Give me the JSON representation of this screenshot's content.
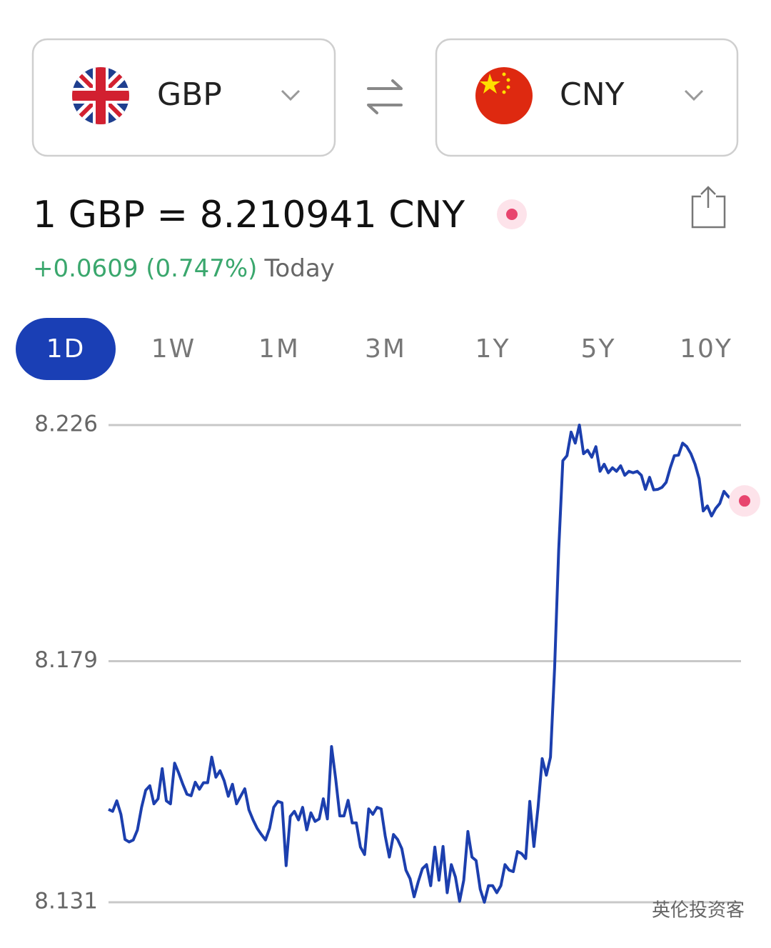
{
  "from_currency": "GBP",
  "to_currency": "CNY",
  "rate_text": "1 GBP = 8.210941 CNY",
  "change": "+0.0609 (0.747%)",
  "period_label": "Today",
  "ranges": [
    "1D",
    "1W",
    "1M",
    "3M",
    "1Y",
    "5Y",
    "10Y"
  ],
  "selected_range_index": 0,
  "watermark": "英伦投资客",
  "chart_data": {
    "type": "line",
    "ylim": [
      8.131,
      8.226
    ],
    "yticks": [
      8.131,
      8.179,
      8.226
    ],
    "grid": true,
    "series": [
      {
        "color": "#1c3fae",
        "values": [
          8.1495,
          8.1491,
          8.1512,
          8.1485,
          8.1435,
          8.143,
          8.1434,
          8.1454,
          8.1499,
          8.1533,
          8.1542,
          8.1506,
          8.1516,
          8.1576,
          8.1512,
          8.1506,
          8.1587,
          8.1567,
          8.1545,
          8.1525,
          8.1522,
          8.1549,
          8.1535,
          8.1548,
          8.1548,
          8.1599,
          8.1559,
          8.1572,
          8.1552,
          8.1521,
          8.1545,
          8.1506,
          8.1521,
          8.1536,
          8.1494,
          8.1474,
          8.1457,
          8.1445,
          8.1434,
          8.1457,
          8.1499,
          8.1511,
          8.1508,
          8.1383,
          8.1481,
          8.1491,
          8.1474,
          8.1499,
          8.1454,
          8.1488,
          8.1471,
          8.1476,
          8.1516,
          8.1476,
          8.162,
          8.1556,
          8.1482,
          8.1482,
          8.1513,
          8.1468,
          8.1468,
          8.142,
          8.1405,
          8.1496,
          8.1485,
          8.1499,
          8.1496,
          8.1442,
          8.14,
          8.1445,
          8.1435,
          8.1417,
          8.1374,
          8.1357,
          8.1321,
          8.1351,
          8.1377,
          8.1385,
          8.1343,
          8.142,
          8.1354,
          8.1421,
          8.1329,
          8.1385,
          8.136,
          8.1312,
          8.1354,
          8.1451,
          8.14,
          8.1393,
          8.1336,
          8.131,
          8.1343,
          8.1343,
          8.1329,
          8.1343,
          8.1385,
          8.1374,
          8.1371,
          8.1411,
          8.1407,
          8.1397,
          8.1511,
          8.1421,
          8.1499,
          8.1596,
          8.1563,
          8.1599,
          8.1777,
          8.2011,
          8.2189,
          8.2199,
          8.2246,
          8.2224,
          8.226,
          8.2203,
          8.221,
          8.2196,
          8.2217,
          8.2168,
          8.2182,
          8.2165,
          8.2175,
          8.2168,
          8.2179,
          8.216,
          8.2168,
          8.2165,
          8.2168,
          8.216,
          8.2132,
          8.2156,
          8.2131,
          8.2132,
          8.2136,
          8.2146,
          8.2175,
          8.2199,
          8.22,
          8.2224,
          8.2217,
          8.2203,
          8.2182,
          8.2153,
          8.2089,
          8.2099,
          8.2079,
          8.2094,
          8.2104,
          8.2128,
          8.2118,
          8.2111,
          8.2114,
          8.2104,
          8.2109
        ]
      }
    ]
  }
}
